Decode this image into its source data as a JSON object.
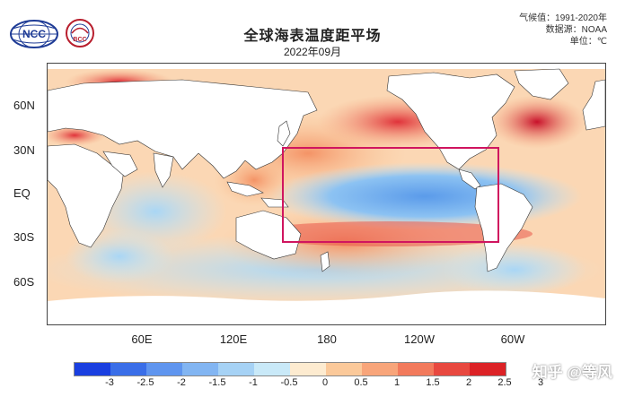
{
  "header": {
    "title": "全球海表温度距平场",
    "subtitle": "2022年09月",
    "meta": [
      "气候值：1991-2020年",
      "数据源：NOAA",
      "单位：℃"
    ]
  },
  "logos": {
    "ncc_text": "NCC",
    "bcc_text": "BCC"
  },
  "map": {
    "lat_labels": [
      "60N",
      "30N",
      "EQ",
      "30S",
      "60S"
    ],
    "lon_labels": [
      "60E",
      "120E",
      "180",
      "120W",
      "60W"
    ],
    "highlight_color": "#d0155f",
    "land_color": "#ffffff"
  },
  "colorbar": {
    "ticks": [
      "-3",
      "-2.5",
      "-2",
      "-1.5",
      "-1",
      "-0.5",
      "0",
      "0.5",
      "1",
      "1.5",
      "2",
      "2.5",
      "3"
    ],
    "colors": [
      "#1a3fe0",
      "#3a6ee8",
      "#5f95ef",
      "#82b5f2",
      "#a6d2f5",
      "#c9e9f8",
      "#fdebd0",
      "#fbc99a",
      "#f8a57a",
      "#f27a5c",
      "#e8483f",
      "#dc2226"
    ]
  },
  "watermark": "知乎 @等风"
}
